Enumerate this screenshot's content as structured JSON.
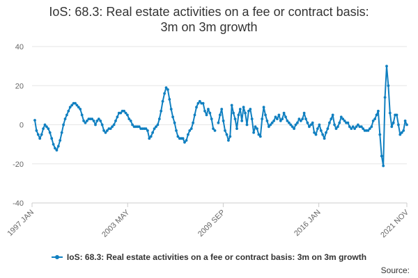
{
  "chart_data": {
    "type": "line",
    "title_line1": "IoS: 68.3: Real estate activities on a fee or contract basis:",
    "title_line2": "3m on 3m growth",
    "y_ticks": [
      "40",
      "20",
      "0",
      "-20",
      "-40"
    ],
    "ylim": [
      -40,
      40
    ],
    "x_ticks": [
      "1997 JAN",
      "2003 MAY",
      "2009 SEP",
      "2016 JAN",
      "2021 NOV"
    ],
    "legend_label": "IoS: 68.3: Real estate activities on a fee or contract basis: 3m on 3m growth",
    "source_label": "Source:",
    "grid": true,
    "legend_position": "bottom",
    "series_color": "#0f7fc0",
    "x_start": "1997-01",
    "x_end": "2021-11",
    "series": [
      {
        "name": "IoS: 68.3: Real estate activities on a fee or contract basis: 3m on 3m growth",
        "values": [
          2.3,
          -3,
          -5,
          -7,
          -5,
          -2,
          0,
          -1,
          -2,
          -4,
          -7,
          -10,
          -12,
          -13,
          -11,
          -8,
          -4,
          0,
          3,
          5,
          7,
          9,
          10,
          11,
          11,
          10,
          9,
          8,
          5,
          2,
          1,
          2,
          3,
          3,
          3,
          2,
          0,
          2,
          3,
          2,
          0,
          -3,
          -4,
          -3,
          -2,
          -2,
          -1,
          0,
          2,
          4,
          6,
          6,
          7,
          7,
          6,
          5,
          3,
          2,
          0,
          -1,
          -1,
          -1,
          -1,
          -2,
          -2,
          -2,
          -2,
          -3,
          -7,
          -6,
          -4,
          -2,
          -1,
          0,
          3,
          7,
          12,
          16,
          19,
          18,
          13,
          8,
          4,
          1,
          -3,
          -6,
          -7,
          -7,
          -7,
          -9,
          -8,
          -5,
          -3,
          -2,
          1,
          5,
          9,
          11,
          12,
          11,
          11,
          7,
          5,
          8,
          6,
          3,
          -2,
          -3,
          "",
          1,
          5,
          8,
          2,
          -3,
          -5,
          -8,
          -6,
          10,
          6,
          3,
          -2,
          5,
          8,
          2,
          9,
          6,
          0,
          7,
          8,
          3,
          -4,
          -1,
          -2,
          -5,
          -6,
          3,
          9,
          5,
          2,
          -1,
          0,
          1,
          2,
          4,
          3,
          5,
          2,
          3,
          6,
          4,
          2,
          1,
          0,
          -1,
          -2,
          0,
          1,
          3,
          2,
          3,
          6,
          3,
          1,
          -1,
          0,
          1,
          -4,
          -5,
          -2,
          0,
          -3,
          -5,
          -7,
          -4,
          -2,
          1,
          3,
          5,
          0,
          -2,
          -1,
          1,
          4,
          3,
          2,
          1,
          1,
          -1,
          -2,
          -1,
          -2,
          -1,
          0,
          -1,
          -1,
          -2,
          -3,
          -3,
          -3,
          -2,
          -1,
          2,
          3,
          5,
          7,
          -5,
          -16,
          -21,
          14,
          30,
          20,
          6,
          -1,
          1,
          5,
          5,
          0,
          -5,
          -4,
          -3,
          2,
          0
        ]
      }
    ]
  }
}
